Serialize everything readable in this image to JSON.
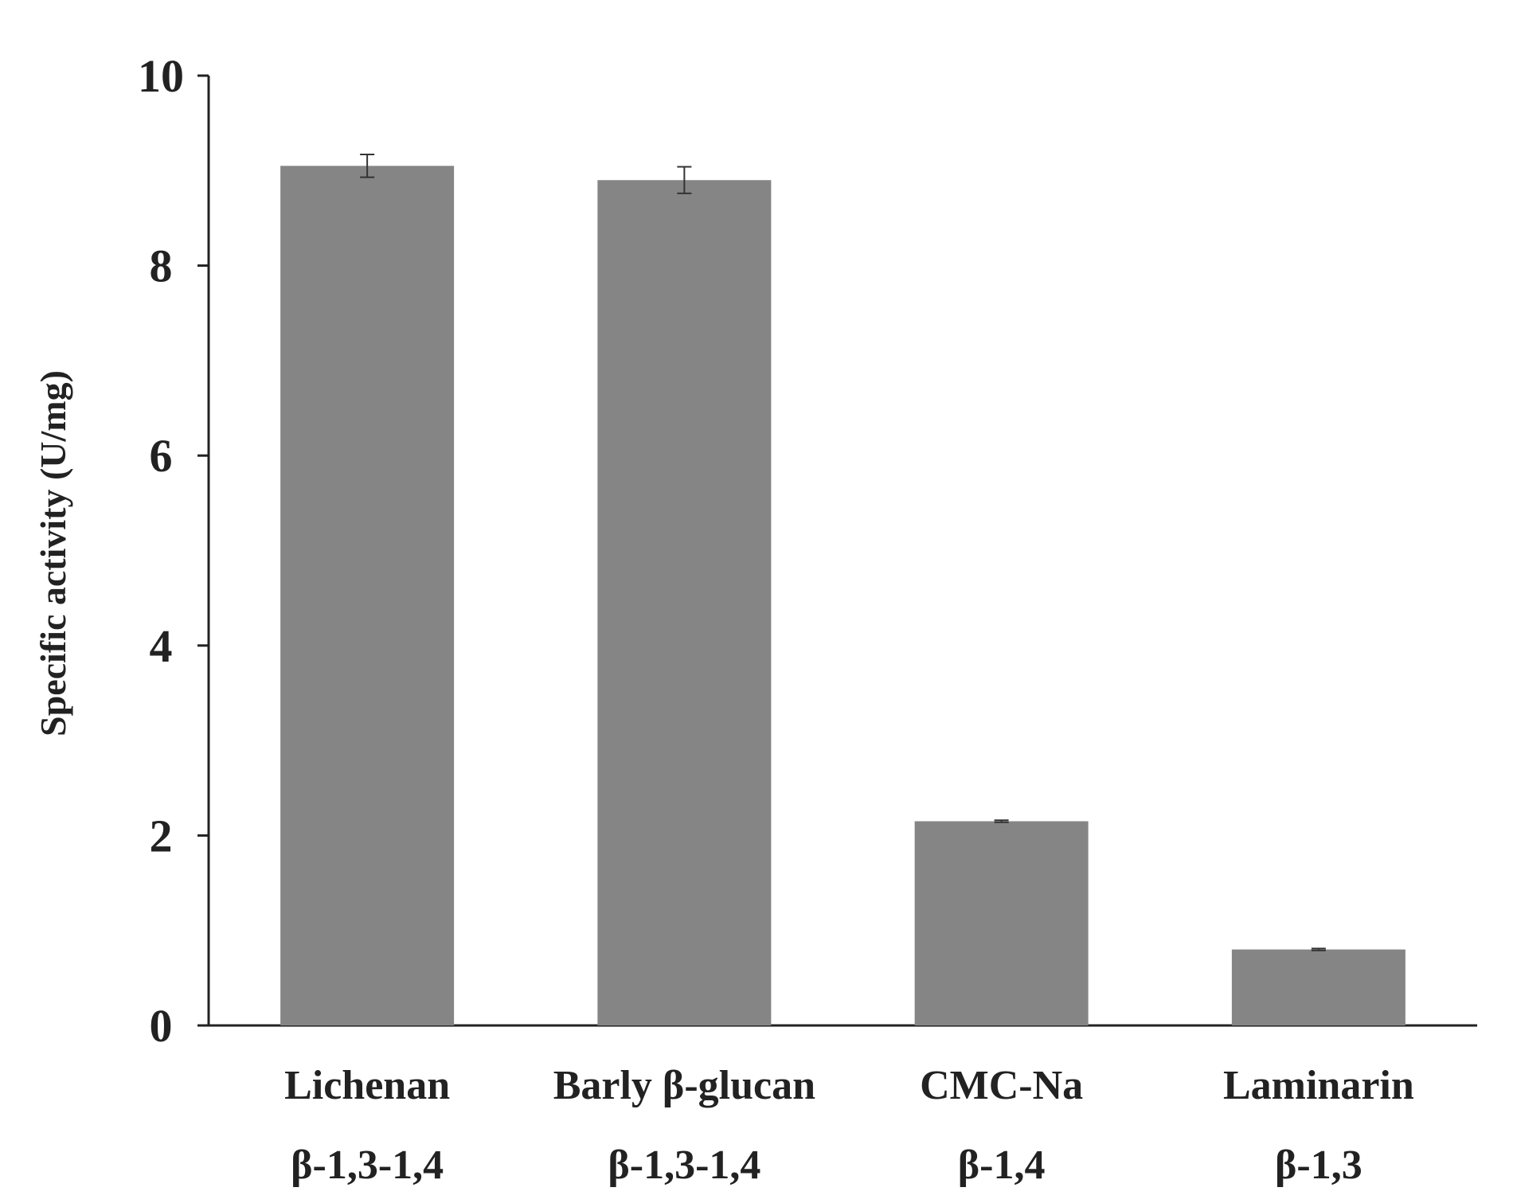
{
  "colors": {
    "bar": "#858585",
    "axis": "#222222",
    "background": "#ffffff"
  },
  "chart_data": {
    "type": "bar",
    "title": "",
    "xlabel": "",
    "ylabel": "Specific activity (U/mg)",
    "ylim": [
      0,
      10
    ],
    "yticks": [
      0,
      2,
      4,
      6,
      8,
      10
    ],
    "grid": false,
    "categories": [
      "Lichenan",
      "Barly β-glucan",
      "CMC-Na",
      "Laminarin"
    ],
    "sublabels": [
      "β-1,3-1,4",
      "β-1,3-1,4",
      "β-1,4",
      "β-1,3"
    ],
    "values": [
      9.05,
      8.9,
      2.15,
      0.8
    ],
    "errors": [
      0.12,
      0.14,
      0.01,
      0.01
    ]
  }
}
